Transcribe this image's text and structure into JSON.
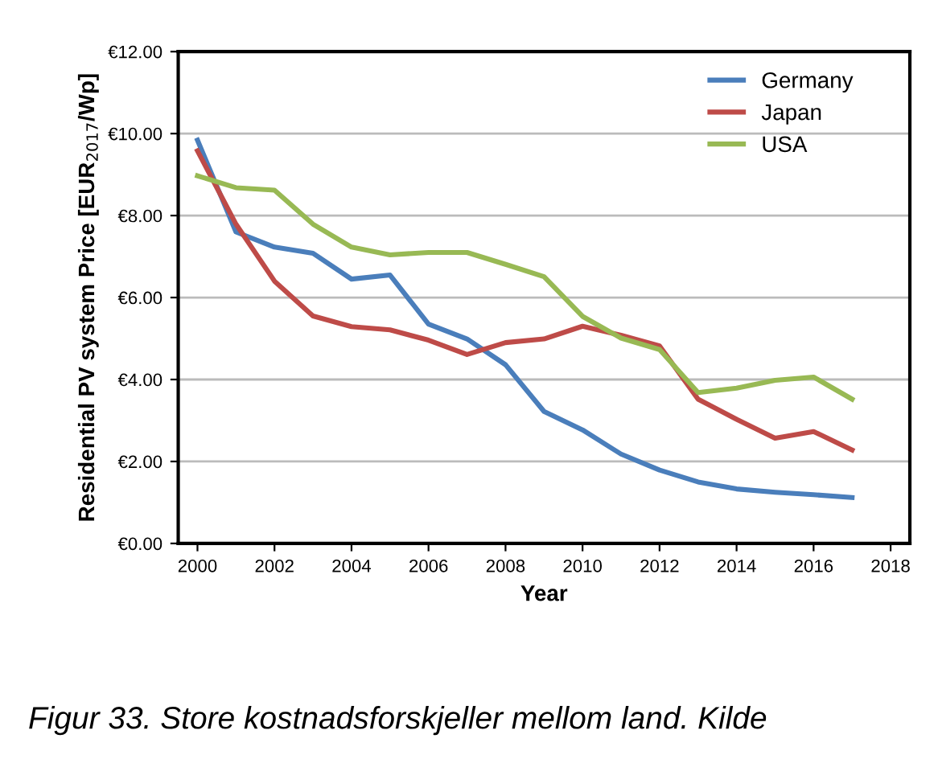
{
  "chart_data": {
    "type": "line",
    "xlabel": "Year",
    "ylabel": "Residential PV system Price [EUR$_{2017}$/Wp]",
    "x": [
      2000,
      2001,
      2002,
      2003,
      2004,
      2005,
      2006,
      2007,
      2008,
      2009,
      2010,
      2011,
      2012,
      2013,
      2014,
      2015,
      2016,
      2017
    ],
    "series": [
      {
        "name": "Germany",
        "color": "#4a7ebb",
        "values": [
          9.84,
          7.6,
          7.23,
          7.08,
          6.45,
          6.55,
          5.35,
          4.99,
          4.36,
          3.22,
          2.77,
          2.18,
          1.79,
          1.5,
          1.33,
          1.25,
          1.19,
          1.12
        ]
      },
      {
        "name": "Japan",
        "color": "#be4b48",
        "values": [
          9.58,
          7.79,
          6.4,
          5.55,
          5.29,
          5.21,
          4.96,
          4.61,
          4.9,
          4.99,
          5.3,
          5.08,
          4.82,
          3.52,
          3.03,
          2.57,
          2.73,
          2.28
        ]
      },
      {
        "name": "USA",
        "color": "#98b954",
        "values": [
          8.97,
          8.68,
          8.62,
          7.79,
          7.23,
          7.04,
          7.1,
          7.1,
          6.81,
          6.51,
          5.54,
          5.01,
          4.73,
          3.68,
          3.79,
          3.98,
          4.06,
          3.52
        ]
      }
    ],
    "xlim": [
      1999.5,
      2018.5
    ],
    "xticks": [
      2000,
      2002,
      2004,
      2006,
      2008,
      2010,
      2012,
      2014,
      2016,
      2018
    ],
    "ylim": [
      0,
      12
    ],
    "yticks": [
      {
        "value": 0,
        "label": "€0.00"
      },
      {
        "value": 2,
        "label": "€2.00"
      },
      {
        "value": 4,
        "label": "€4.00"
      },
      {
        "value": 6,
        "label": "€6.00"
      },
      {
        "value": 8,
        "label": "€8.00"
      },
      {
        "value": 10,
        "label": "€10.00"
      },
      {
        "value": 12,
        "label": "€12.00"
      }
    ],
    "grid": "y",
    "legend": "top right",
    "marker": "none",
    "line_style": "solid",
    "annotations": [
      "Figur 33. Store kostnadsforskjeller mellom land. Kilde"
    ]
  }
}
